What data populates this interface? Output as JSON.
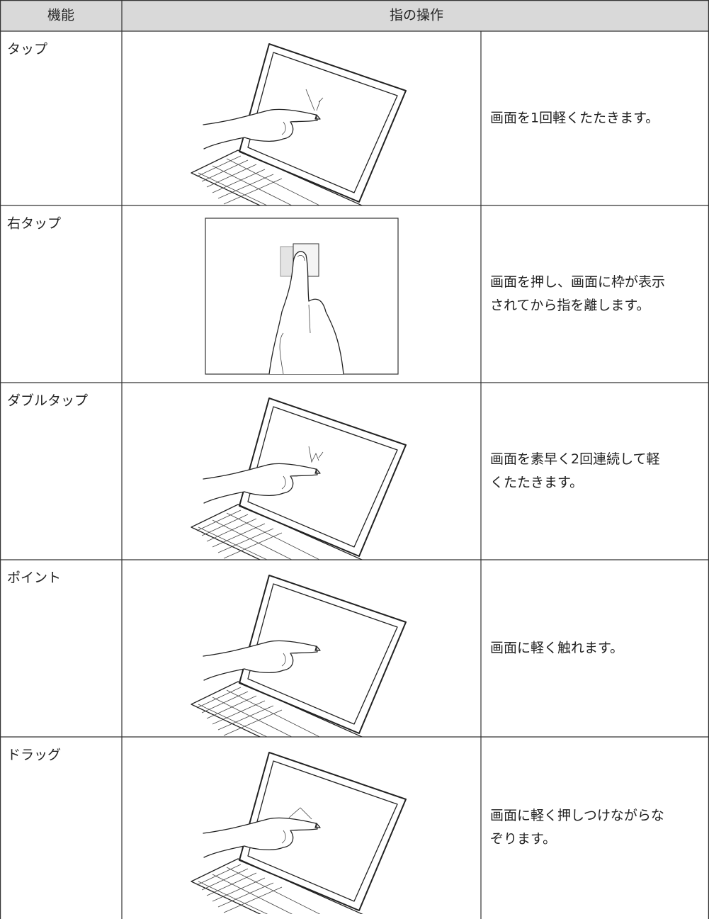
{
  "table": {
    "header": [
      "機能",
      "指の操作"
    ],
    "rows": [
      {
        "function": "タップ",
        "description": [
          "画面を1回軽くたたきます。"
        ]
      },
      {
        "function": "右タップ",
        "description": [
          "画面を押し、画面に枠が表示",
          "されてから指を離します。"
        ]
      },
      {
        "function": "ダブルタップ",
        "description": [
          "画面を素早く2回連続して軽",
          "くたたきます。"
        ]
      },
      {
        "function": "ポイント",
        "description": [
          "画面に軽く触れます。"
        ]
      },
      {
        "function": "ドラッグ",
        "description": [
          "画面に軽く押しつけながらな",
          "ぞります。"
        ]
      }
    ]
  }
}
